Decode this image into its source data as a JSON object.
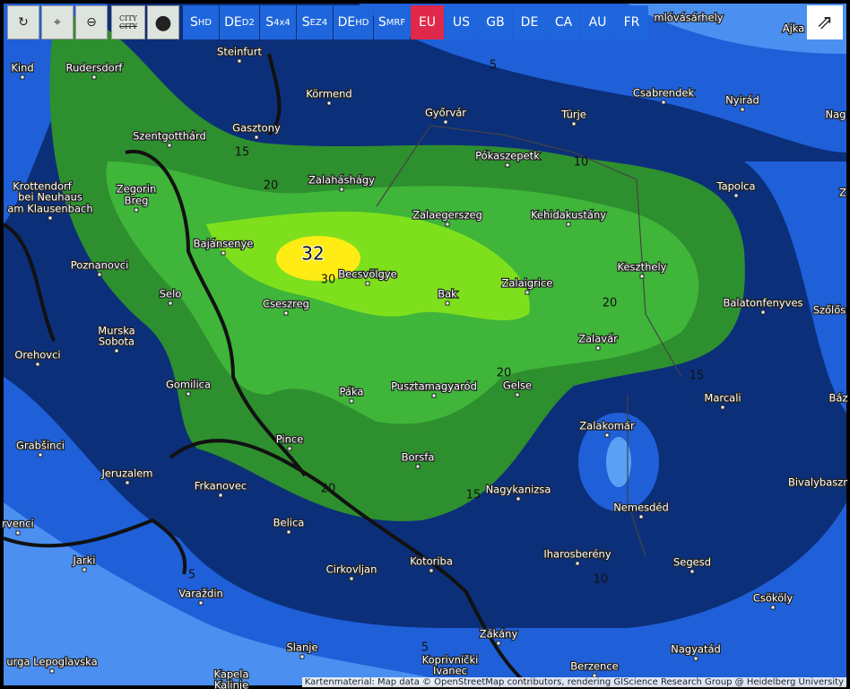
{
  "toolbar": {
    "city_icon": "CITY",
    "models": [
      {
        "main": "S",
        "sub": "HD"
      },
      {
        "main": "DE",
        "sub": "D2"
      },
      {
        "main": "S",
        "sub": "4x4"
      },
      {
        "main": "S",
        "sub": "EZ4"
      },
      {
        "main": "DE",
        "sub": "HD"
      },
      {
        "main": "S",
        "sub": "MRF"
      }
    ],
    "regions": [
      "EU",
      "US",
      "GB",
      "DE",
      "CA",
      "AU",
      "FR"
    ]
  },
  "map": {
    "cities": [
      "mlóvásárhely",
      "Ajka",
      "Steinfurt",
      "Rudersdorf",
      "Kind",
      "Körmend",
      "Győrvár",
      "Csabrendek",
      "Nyirád",
      "Türje",
      "Nag",
      "Gasztony",
      "Szentgotthárd",
      "Pókaszepetk",
      "Zalaháshágy",
      "Tapolca",
      "Z",
      "Krottendorf",
      "bei Neuhaus",
      "am Klausenbach",
      "Zegorin",
      "Breg",
      "Zalaegerszeg",
      "Kehidakustány",
      "Bajánsenye",
      "Poznanovci",
      "Keszthely",
      "Becsvölgye",
      "Selo",
      "Zalaigrice",
      "Bak",
      "Cseszreg",
      "Balatonfenyves",
      "Szőlős",
      "Murska",
      "Sobota",
      "Zalavár",
      "Orehovci",
      "Gomilica",
      "Páka",
      "Pusztamagyaród",
      "Gelse",
      "Marcali",
      "Báz",
      "Zalakomár",
      "Grabšinci",
      "Pince",
      "Borsfa",
      "Jeruzalem",
      "Frkanovec",
      "Nagykanizsa",
      "Bivalybaszr",
      "Nemesdéd",
      "Belica",
      "rvenci",
      "Iharosberény",
      "Segesd",
      "Jarki",
      "Cirkovljan",
      "Kotoriba",
      "Varaždin",
      "Csököly",
      "Zákány",
      "Slanje",
      "Nagyatád",
      "urga Lepoglavska",
      "Koprivnički",
      "Ivanec",
      "Berzence",
      "Kapela",
      "Kalinje"
    ],
    "contour_labels": [
      5,
      15,
      10,
      20,
      32,
      30,
      20,
      15,
      20,
      15,
      20,
      10,
      5,
      5
    ],
    "attribution": "Kartenmaterial: Map data © OpenStreetMap contributors, rendering GIScience Research Group @ Heidelberg University"
  }
}
